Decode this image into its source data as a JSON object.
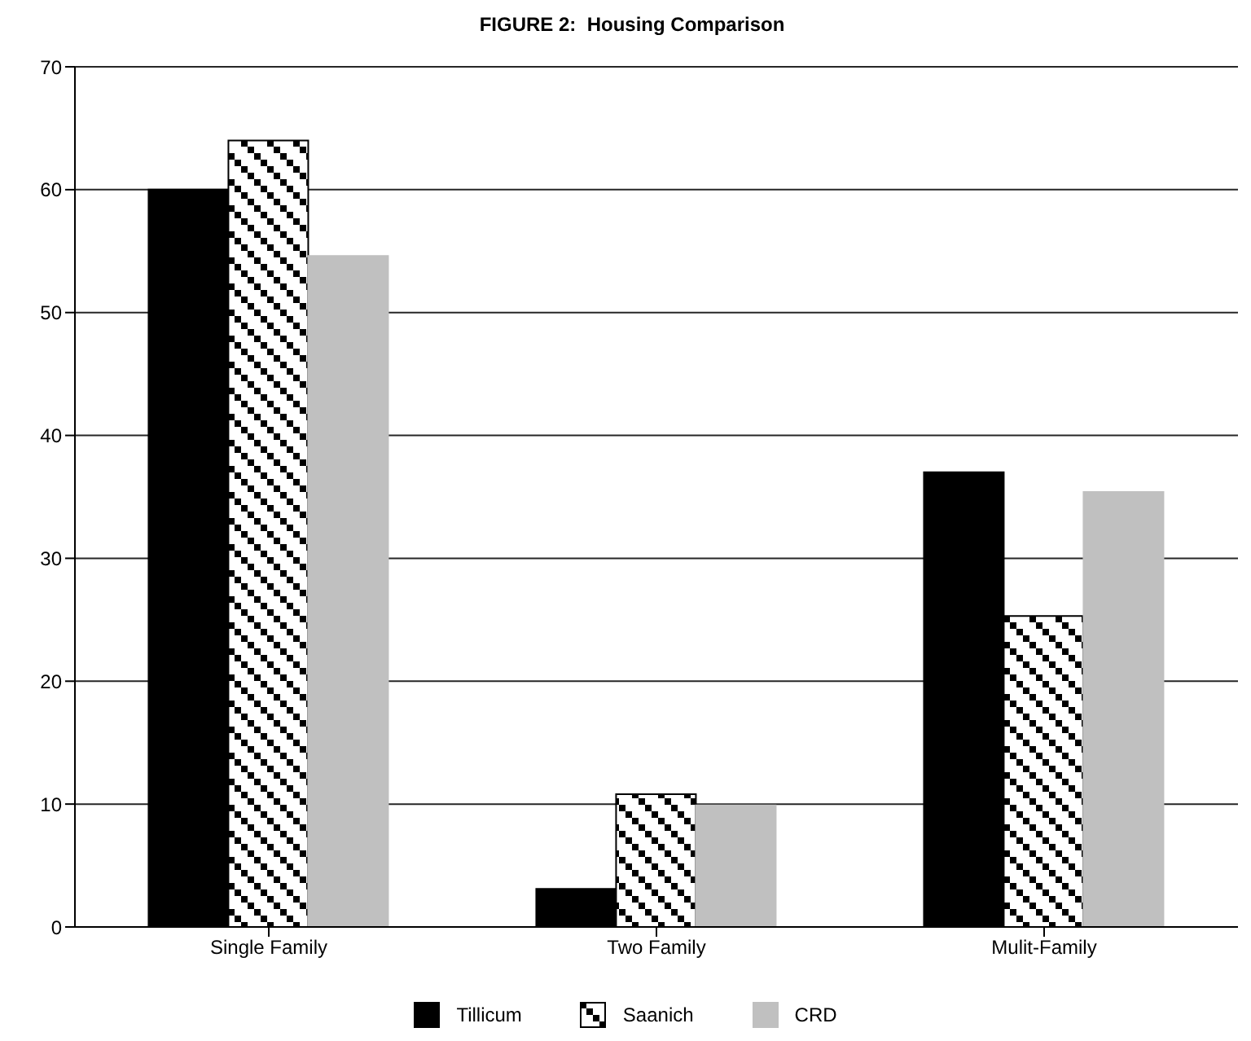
{
  "chart_data": {
    "type": "bar",
    "title": "FIGURE 2:  Housing Comparison",
    "categories": [
      "Single Family",
      "Two Family",
      "Mulit-Family"
    ],
    "series": [
      {
        "name": "Tillicum",
        "color": "#000000",
        "values": [
          60.0,
          3.1,
          37.0
        ]
      },
      {
        "name": "Saanich",
        "color": "#000000",
        "values": [
          64.0,
          10.8,
          25.3
        ]
      },
      {
        "name": "CRD",
        "color": "#c0c0c0",
        "values": [
          54.6,
          9.9,
          35.4
        ]
      }
    ],
    "ylim": [
      0,
      70
    ],
    "yticks": [
      0,
      10,
      20,
      30,
      40,
      50,
      60,
      70
    ],
    "grid": "y",
    "legend": "bottom"
  }
}
